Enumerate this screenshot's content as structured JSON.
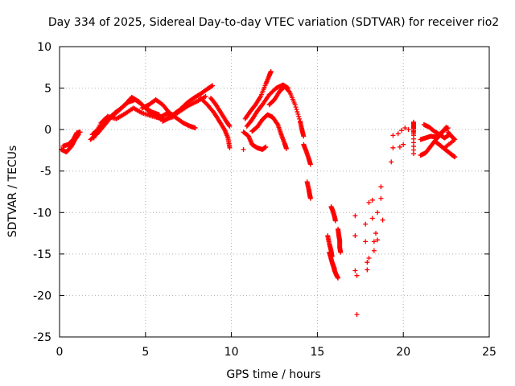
{
  "chart_data": {
    "type": "scatter",
    "title": "Day 334 of 2025, Sidereal Day-to-day VTEC variation (SDTVAR) for receiver rio2",
    "xlabel": "GPS time / hours",
    "ylabel": "SDTVAR / TECUs",
    "xlim": [
      0,
      25
    ],
    "ylim": [
      -25,
      10
    ],
    "xticks": [
      0,
      5,
      10,
      15,
      20,
      25
    ],
    "yticks": [
      -25,
      -20,
      -15,
      -10,
      -5,
      0,
      5,
      10
    ],
    "grid": true,
    "marker": "+",
    "color": "#ff0000",
    "tracks": [
      {
        "name": "track-1",
        "points": [
          [
            0.1,
            -2.4
          ],
          [
            0.4,
            -2.7
          ],
          [
            0.7,
            -2.0
          ],
          [
            0.9,
            -1.2
          ],
          [
            1.1,
            -0.6
          ]
        ]
      },
      {
        "name": "track-2",
        "points": [
          [
            0.2,
            -2.0
          ],
          [
            0.5,
            -1.8
          ],
          [
            0.8,
            -1.2
          ],
          [
            1.0,
            -0.4
          ],
          [
            1.2,
            -0.3
          ]
        ]
      },
      {
        "name": "track-3",
        "points": [
          [
            1.8,
            -1.2
          ],
          [
            2.2,
            -0.5
          ],
          [
            2.6,
            0.5
          ],
          [
            3.0,
            1.5
          ],
          [
            3.4,
            2.2
          ],
          [
            3.8,
            3.0
          ],
          [
            4.2,
            3.9
          ],
          [
            4.6,
            3.4
          ],
          [
            5.0,
            2.6
          ],
          [
            5.4,
            2.1
          ],
          [
            5.8,
            1.8
          ]
        ]
      },
      {
        "name": "track-4",
        "points": [
          [
            1.9,
            -0.6
          ],
          [
            2.3,
            0.2
          ],
          [
            2.8,
            1.2
          ],
          [
            3.2,
            2.0
          ],
          [
            3.6,
            2.6
          ],
          [
            4.0,
            3.3
          ],
          [
            4.4,
            3.6
          ],
          [
            4.8,
            3.0
          ],
          [
            5.2,
            2.2
          ],
          [
            5.6,
            1.6
          ],
          [
            6.0,
            1.2
          ]
        ]
      },
      {
        "name": "track-5",
        "points": [
          [
            2.0,
            -1.0
          ],
          [
            2.4,
            0.8
          ],
          [
            2.8,
            1.6
          ],
          [
            3.3,
            1.3
          ],
          [
            3.8,
            1.9
          ],
          [
            4.3,
            2.6
          ],
          [
            4.8,
            2.0
          ],
          [
            5.4,
            1.6
          ],
          [
            6.0,
            1.3
          ],
          [
            6.6,
            1.5
          ]
        ]
      },
      {
        "name": "track-6",
        "points": [
          [
            4.8,
            2.6
          ],
          [
            5.2,
            3.0
          ],
          [
            5.6,
            3.6
          ],
          [
            6.0,
            3.0
          ],
          [
            6.4,
            2.0
          ],
          [
            6.8,
            1.4
          ],
          [
            7.2,
            0.8
          ],
          [
            7.6,
            0.4
          ],
          [
            7.9,
            0.2
          ]
        ]
      },
      {
        "name": "track-7",
        "points": [
          [
            5.8,
            1.4
          ],
          [
            6.2,
            1.9
          ],
          [
            6.6,
            1.8
          ],
          [
            7.0,
            2.4
          ],
          [
            7.4,
            3.2
          ],
          [
            7.8,
            3.8
          ],
          [
            8.2,
            4.3
          ],
          [
            8.6,
            4.9
          ],
          [
            8.9,
            5.3
          ]
        ]
      },
      {
        "name": "track-8",
        "points": [
          [
            6.0,
            1.0
          ],
          [
            6.5,
            1.5
          ],
          [
            7.0,
            2.2
          ],
          [
            7.5,
            2.9
          ],
          [
            8.0,
            3.4
          ],
          [
            8.5,
            4.0
          ]
        ]
      },
      {
        "name": "track-9",
        "points": [
          [
            8.2,
            3.8
          ],
          [
            8.6,
            3.0
          ],
          [
            9.0,
            2.0
          ],
          [
            9.3,
            1.0
          ],
          [
            9.6,
            0.0
          ],
          [
            9.8,
            -1.0
          ],
          [
            9.9,
            -2.2
          ]
        ]
      },
      {
        "name": "track-10",
        "points": [
          [
            8.8,
            3.8
          ],
          [
            9.1,
            3.0
          ],
          [
            9.4,
            2.0
          ],
          [
            9.7,
            1.0
          ],
          [
            9.9,
            0.4
          ]
        ]
      },
      {
        "name": "track-11",
        "points": [
          [
            10.7,
            -2.4
          ]
        ]
      },
      {
        "name": "track-12",
        "points": [
          [
            10.8,
            1.3
          ],
          [
            11.1,
            2.2
          ],
          [
            11.4,
            3.0
          ],
          [
            11.7,
            4.0
          ],
          [
            12.0,
            5.5
          ],
          [
            12.2,
            6.5
          ],
          [
            12.3,
            7.0
          ]
        ]
      },
      {
        "name": "track-13",
        "points": [
          [
            10.9,
            0.4
          ],
          [
            11.2,
            1.2
          ],
          [
            11.5,
            2.2
          ],
          [
            11.8,
            3.0
          ],
          [
            12.2,
            4.2
          ],
          [
            12.6,
            5.0
          ],
          [
            13.0,
            5.4
          ],
          [
            13.3,
            5.0
          ]
        ]
      },
      {
        "name": "track-14",
        "points": [
          [
            10.7,
            -0.3
          ],
          [
            11.0,
            -0.8
          ],
          [
            11.2,
            -1.8
          ],
          [
            11.5,
            -2.2
          ],
          [
            11.8,
            -2.4
          ],
          [
            12.0,
            -2.1
          ]
        ]
      },
      {
        "name": "track-15",
        "points": [
          [
            11.2,
            -0.2
          ],
          [
            11.5,
            0.3
          ],
          [
            11.8,
            1.2
          ],
          [
            12.1,
            1.8
          ],
          [
            12.4,
            1.5
          ],
          [
            12.7,
            0.6
          ],
          [
            12.9,
            -0.6
          ],
          [
            13.1,
            -1.7
          ],
          [
            13.2,
            -2.3
          ]
        ]
      },
      {
        "name": "track-16",
        "points": [
          [
            12.2,
            3.0
          ],
          [
            12.5,
            3.6
          ],
          [
            12.8,
            4.6
          ],
          [
            13.1,
            5.2
          ],
          [
            13.4,
            4.5
          ],
          [
            13.7,
            3.0
          ],
          [
            14.0,
            1.0
          ],
          [
            14.1,
            0.0
          ],
          [
            14.2,
            -0.8
          ]
        ]
      },
      {
        "name": "track-17",
        "points": [
          [
            14.2,
            -1.8
          ],
          [
            14.35,
            -2.6
          ],
          [
            14.5,
            -3.5
          ],
          [
            14.6,
            -4.2
          ]
        ]
      },
      {
        "name": "track-18",
        "points": [
          [
            14.4,
            -6.3
          ],
          [
            14.5,
            -7.2
          ],
          [
            14.55,
            -7.8
          ],
          [
            14.6,
            -8.3
          ]
        ]
      },
      {
        "name": "track-19",
        "points": [
          [
            15.8,
            -9.3
          ],
          [
            15.9,
            -9.8
          ],
          [
            16.0,
            -10.5
          ],
          [
            16.05,
            -11.0
          ]
        ]
      },
      {
        "name": "track-20",
        "points": [
          [
            15.6,
            -12.8
          ],
          [
            15.7,
            -13.8
          ],
          [
            15.8,
            -14.6
          ],
          [
            15.85,
            -15.3
          ]
        ]
      },
      {
        "name": "track-21",
        "points": [
          [
            15.7,
            -14.8
          ],
          [
            15.8,
            -15.6
          ],
          [
            15.9,
            -16.3
          ],
          [
            16.0,
            -16.8
          ]
        ]
      },
      {
        "name": "track-22",
        "points": [
          [
            15.9,
            -16.2
          ],
          [
            16.0,
            -17.0
          ],
          [
            16.1,
            -17.5
          ],
          [
            16.2,
            -17.9
          ]
        ]
      },
      {
        "name": "track-23",
        "points": [
          [
            16.2,
            -12.0
          ],
          [
            16.25,
            -12.8
          ],
          [
            16.3,
            -13.4
          ],
          [
            16.3,
            -14.2
          ],
          [
            16.35,
            -14.8
          ]
        ]
      },
      {
        "name": "scatter-24",
        "points": [
          [
            17.2,
            -10.4
          ],
          [
            17.2,
            -12.8
          ],
          [
            17.2,
            -17.0
          ],
          [
            17.3,
            -17.6
          ],
          [
            17.3,
            -22.3
          ],
          [
            17.8,
            -11.4
          ],
          [
            17.8,
            -13.5
          ],
          [
            17.9,
            -16.0
          ],
          [
            17.9,
            -16.9
          ],
          [
            18.0,
            -15.5
          ],
          [
            18.0,
            -8.8
          ],
          [
            18.2,
            -8.5
          ],
          [
            18.2,
            -10.7
          ],
          [
            18.3,
            -13.5
          ],
          [
            18.3,
            -14.6
          ],
          [
            18.4,
            -12.5
          ],
          [
            18.5,
            -13.3
          ],
          [
            18.5,
            -10.0
          ],
          [
            18.7,
            -6.9
          ],
          [
            18.7,
            -8.3
          ],
          [
            18.8,
            -10.9
          ]
        ]
      },
      {
        "name": "scatter-25",
        "points": [
          [
            19.3,
            -3.9
          ],
          [
            19.4,
            -2.2
          ],
          [
            19.8,
            -2.1
          ],
          [
            20.0,
            -1.8
          ],
          [
            19.4,
            -0.7
          ],
          [
            19.7,
            -0.5
          ],
          [
            19.9,
            -0.1
          ],
          [
            20.1,
            0.2
          ],
          [
            20.3,
            0.0
          ]
        ]
      },
      {
        "name": "track-26",
        "points": [
          [
            20.6,
            -0.5
          ],
          [
            20.6,
            0.9
          ],
          [
            20.6,
            0.2
          ],
          [
            20.6,
            -2.9
          ]
        ]
      },
      {
        "name": "track-27",
        "points": [
          [
            21.0,
            -1.2
          ],
          [
            21.3,
            -1.0
          ],
          [
            21.6,
            -0.8
          ],
          [
            21.9,
            -0.9
          ],
          [
            22.2,
            -0.4
          ],
          [
            22.4,
            0.0
          ],
          [
            22.6,
            0.2
          ]
        ]
      },
      {
        "name": "track-28",
        "points": [
          [
            21.2,
            0.6
          ],
          [
            21.5,
            0.3
          ],
          [
            21.8,
            -0.2
          ],
          [
            22.1,
            -0.6
          ],
          [
            22.4,
            -1.0
          ],
          [
            22.7,
            -0.6
          ]
        ]
      },
      {
        "name": "track-29",
        "points": [
          [
            21.0,
            -3.1
          ],
          [
            21.3,
            -2.8
          ],
          [
            21.6,
            -2.0
          ],
          [
            21.9,
            -1.2
          ],
          [
            22.2,
            -0.5
          ],
          [
            22.5,
            0.3
          ]
        ]
      },
      {
        "name": "track-30",
        "points": [
          [
            21.9,
            -1.5
          ],
          [
            22.2,
            -2.0
          ],
          [
            22.5,
            -2.5
          ],
          [
            22.8,
            -3.0
          ],
          [
            23.0,
            -3.3
          ]
        ]
      },
      {
        "name": "track-31",
        "points": [
          [
            22.6,
            -0.3
          ],
          [
            22.8,
            -0.8
          ],
          [
            23.0,
            -1.2
          ],
          [
            22.4,
            -2.2
          ]
        ]
      }
    ]
  }
}
